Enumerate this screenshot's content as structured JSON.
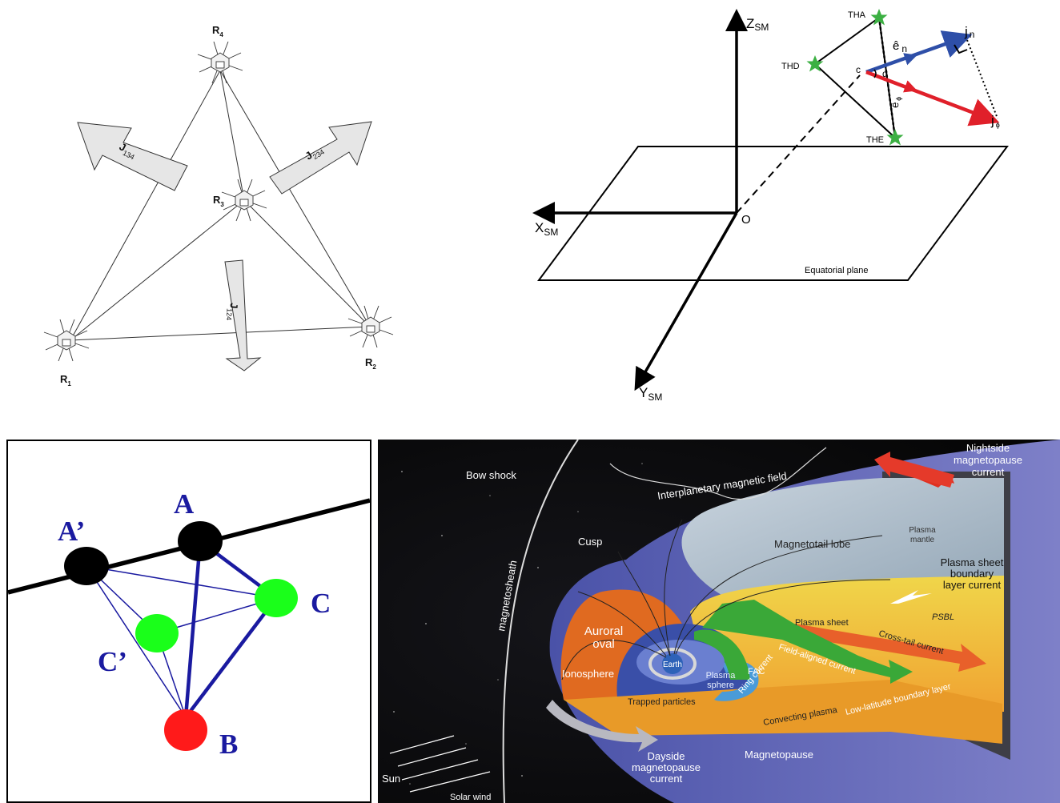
{
  "tetrahedron_panel": {
    "vertices": {
      "r4": {
        "name": "R",
        "sub": "4"
      },
      "r3": {
        "name": "R",
        "sub": "3"
      },
      "r1": {
        "name": "R",
        "sub": "1"
      },
      "r2": {
        "name": "R",
        "sub": "2"
      }
    },
    "currents": {
      "j134": {
        "name": "J",
        "sub": "134"
      },
      "j234": {
        "name": "J",
        "sub": "234"
      },
      "j124": {
        "name": "J",
        "sub": "124"
      }
    }
  },
  "coordinate_panel": {
    "axis_z": {
      "name": "Z",
      "sub": "SM"
    },
    "axis_x": {
      "name": "X",
      "sub": "SM"
    },
    "axis_y": {
      "name": "Y",
      "sub": "SM"
    },
    "origin": "O",
    "plane_label": "Equatorial plane",
    "spacecraft": {
      "tha": "THA",
      "thd": "THD",
      "the": "THE"
    },
    "center": "c",
    "angle": "α",
    "e_n": {
      "name": "ê",
      "sub": "n"
    },
    "e_phi": {
      "name": "ê",
      "sub": "ϕ"
    },
    "j_n": {
      "name": "j",
      "sub": "n"
    },
    "j_phi": {
      "name": "j",
      "sub": "ϕ"
    },
    "colors": {
      "star": "#3cb043",
      "blue_arrow": "#2e4fa8",
      "red_arrow": "#e0202a"
    }
  },
  "cluster_panel": {
    "labels": {
      "a": "A",
      "a_prime": "A’",
      "b": "B",
      "c": "C",
      "c_prime": "C’"
    },
    "colors": {
      "a": "#000000",
      "b": "#ff1a1a",
      "c": "#1aff1a",
      "label": "#1a1aa0"
    }
  },
  "magnetosphere_panel": {
    "labels": {
      "nightside_current": [
        "Nightside",
        "magnetopause",
        "current"
      ],
      "bow_shock": "Bow shock",
      "imf": "Interplanetary magnetic field",
      "cusp": "Cusp",
      "magnetotail_lobe": "Magnetotail lobe",
      "plasma_mantle": [
        "Plasma",
        "mantle"
      ],
      "psbl_current": [
        "Plasma sheet",
        "boundary",
        "layer current"
      ],
      "psbl": "PSBL",
      "magnetosheath": "magnetosheath",
      "auroral_oval": [
        "Auroral",
        "oval"
      ],
      "plasma_sheet": "Plasma sheet",
      "cross_tail": "Cross-tail current",
      "ionosphere": "Ionosphere",
      "earth": "Earth",
      "plasmasphere": [
        "Plasma",
        "sphere"
      ],
      "fac": "FAC",
      "field_aligned": "Field-aligned current",
      "ring_current": "Ring current",
      "trapped": "Trapped particles",
      "convecting": "Convecting plasma",
      "llbl": "Low-latitude boundary layer",
      "dayside_current": [
        "Dayside",
        "magnetopause",
        "current"
      ],
      "magnetopause": "Magnetopause",
      "sun": "Sun",
      "solar_wind": "Solar wind"
    }
  }
}
